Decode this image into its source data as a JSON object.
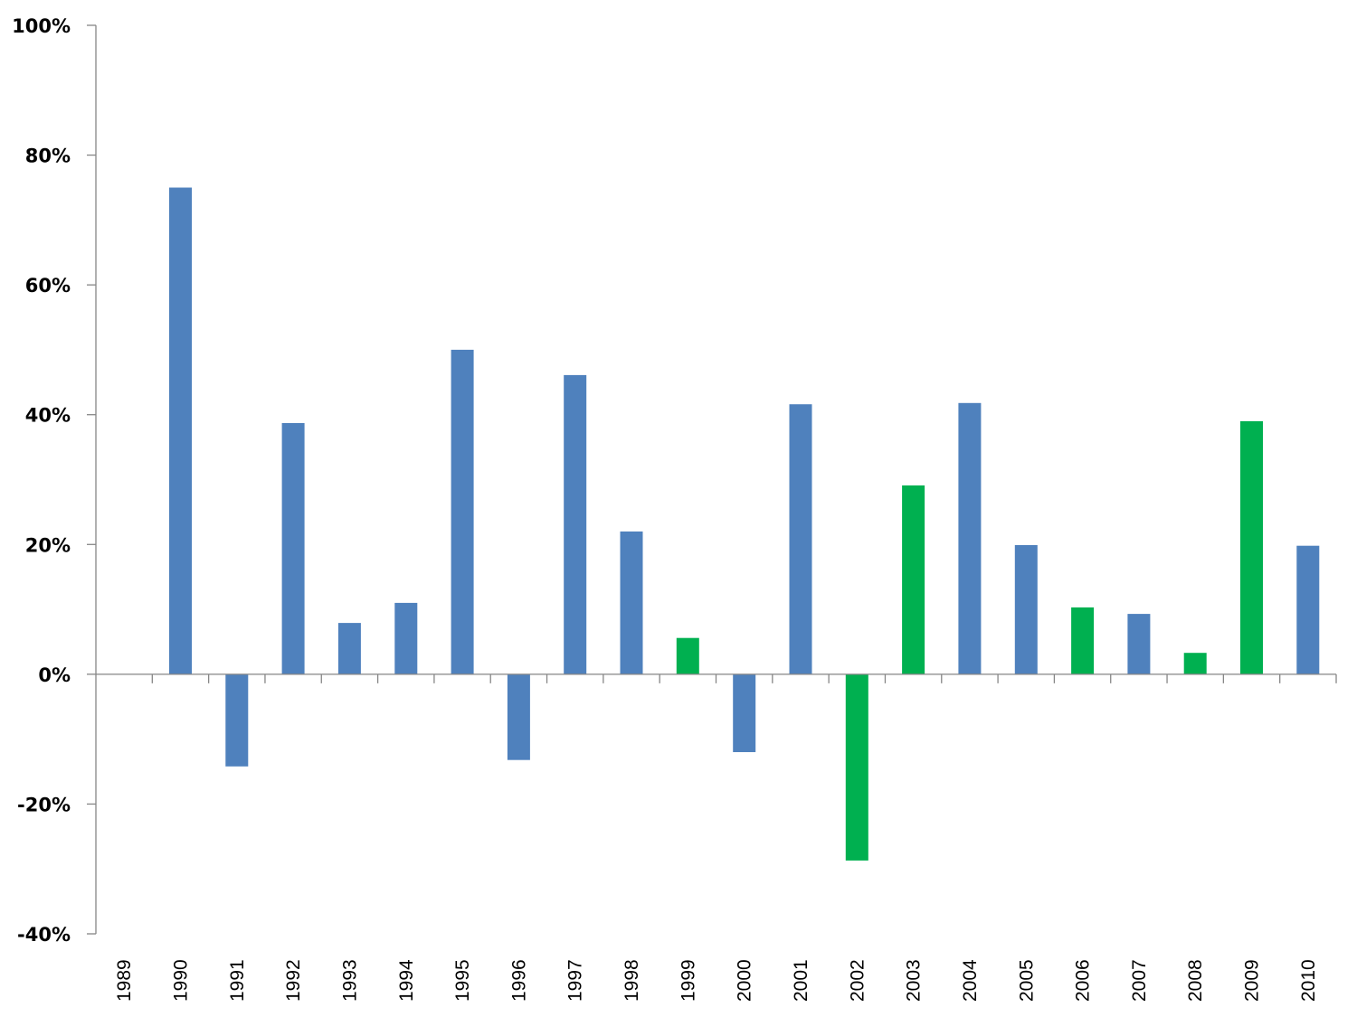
{
  "chart_data": {
    "type": "bar",
    "title": "",
    "xlabel": "",
    "ylabel": "",
    "ylim": [
      -40,
      100
    ],
    "yticks": [
      -40,
      -20,
      0,
      20,
      40,
      60,
      80,
      100
    ],
    "ytick_labels": [
      "-40%",
      "-20%",
      "0%",
      "20%",
      "40%",
      "60%",
      "80%",
      "100%"
    ],
    "grid": false,
    "legend": null,
    "categories": [
      "1989",
      "1990",
      "1991",
      "1992",
      "1993",
      "1994",
      "1995",
      "1996",
      "1997",
      "1998",
      "1999",
      "2000",
      "2001",
      "2002",
      "2003",
      "2004",
      "2005",
      "2006",
      "2007",
      "2008",
      "2009",
      "2010"
    ],
    "values": [
      null,
      75.0,
      -14.2,
      38.7,
      7.9,
      11.0,
      50.0,
      -13.2,
      46.1,
      22.0,
      5.6,
      -12.0,
      41.6,
      -28.7,
      29.1,
      41.8,
      19.9,
      10.3,
      9.3,
      3.3,
      39.0,
      19.8
    ],
    "bar_colors": [
      "#4F81BD",
      "#4F81BD",
      "#4F81BD",
      "#4F81BD",
      "#4F81BD",
      "#4F81BD",
      "#4F81BD",
      "#4F81BD",
      "#4F81BD",
      "#4F81BD",
      "#00B050",
      "#4F81BD",
      "#4F81BD",
      "#00B050",
      "#00B050",
      "#4F81BD",
      "#4F81BD",
      "#00B050",
      "#4F81BD",
      "#00B050",
      "#00B050",
      "#4F81BD"
    ],
    "colors": {
      "primary": "#4F81BD",
      "highlight": "#00B050",
      "axis": "#868686"
    }
  }
}
